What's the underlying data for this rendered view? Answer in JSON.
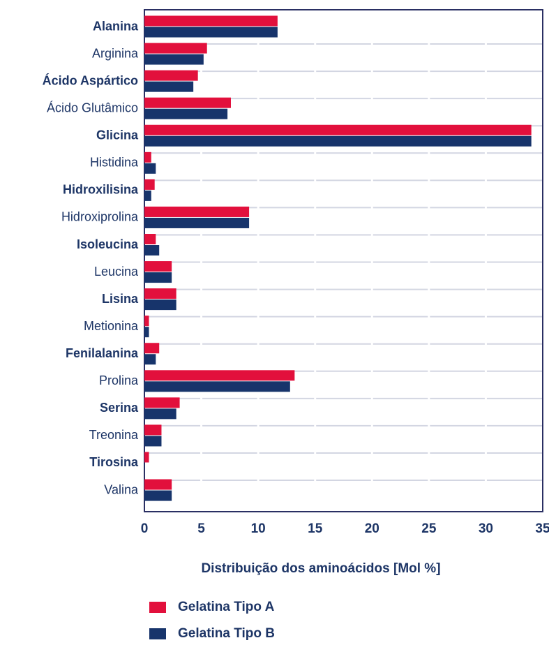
{
  "chart_data": {
    "type": "bar",
    "orientation": "horizontal",
    "xlabel": "Distribuição dos aminoácidos  [Mol %]",
    "categories": [
      "Alanina",
      "Arginina",
      "Ácido Aspártico",
      "Ácido Glutâmico",
      "Glicina",
      "Histidina",
      "Hidroxilisina",
      "Hidroxiprolina",
      "Isoleucina",
      "Leucina",
      "Lisina",
      "Metionina",
      "Fenilalanina",
      "Prolina",
      "Serina",
      "Treonina",
      "Tirosina",
      "Valina"
    ],
    "series": [
      {
        "name": "Gelatina Tipo A",
        "color": "#e2103c",
        "values": [
          11.7,
          5.5,
          4.7,
          7.6,
          34.0,
          0.6,
          0.9,
          9.2,
          1.0,
          2.4,
          2.8,
          0.4,
          1.3,
          13.2,
          3.1,
          1.5,
          0.4,
          2.4
        ]
      },
      {
        "name": "Gelatina Tipo B",
        "color": "#17346b",
        "values": [
          11.7,
          5.2,
          4.3,
          7.3,
          34.0,
          1.0,
          0.6,
          9.2,
          1.3,
          2.4,
          2.8,
          0.4,
          1.0,
          12.8,
          2.8,
          1.5,
          0,
          2.4
        ]
      }
    ],
    "xlim": [
      0,
      35
    ],
    "xticks": [
      0,
      5,
      10,
      15,
      20,
      25,
      30,
      35
    ],
    "grid": true,
    "legend": "bottom-left"
  }
}
